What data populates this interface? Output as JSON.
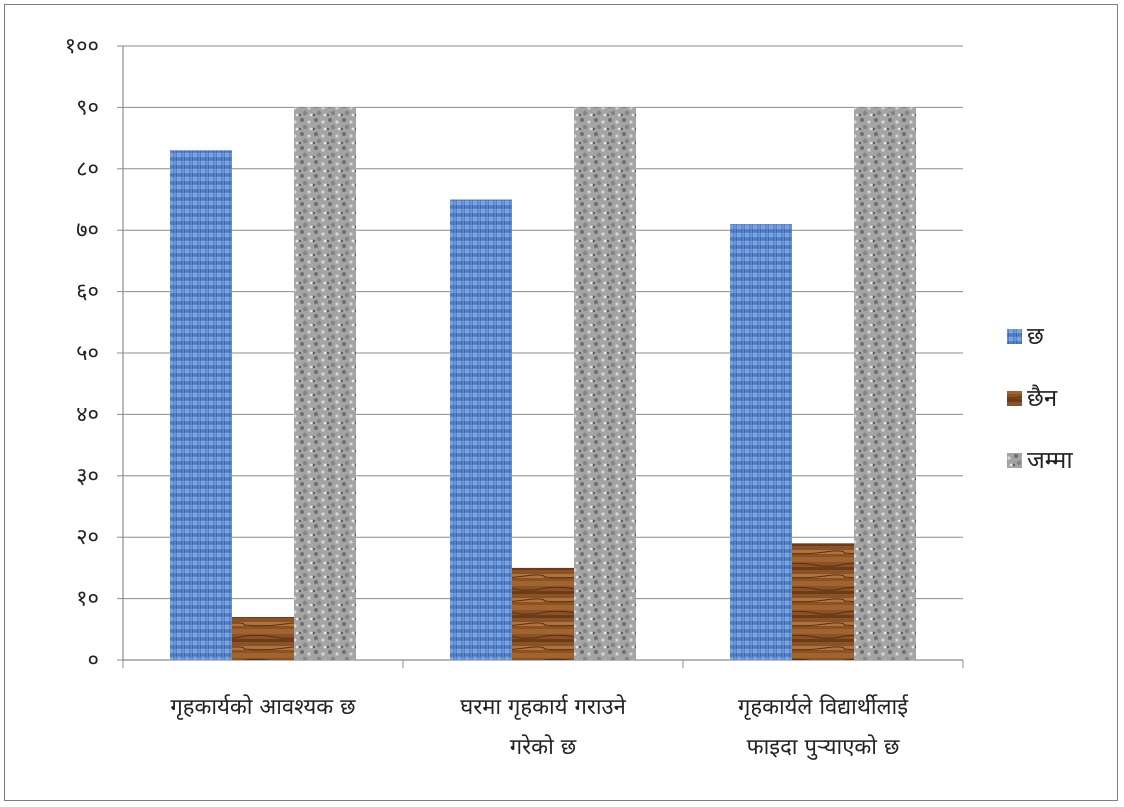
{
  "chart_data": {
    "type": "bar",
    "categories": [
      [
        "गृहकार्यको आवश्यक छ"
      ],
      [
        "घरमा गृहकार्य गराउने",
        "गरेको छ"
      ],
      [
        "गृहकार्यले विद्यार्थीलाई",
        "फाइदा पुऱ्याएको छ"
      ]
    ],
    "series": [
      {
        "name": "छ",
        "values": [
          83,
          75,
          71
        ],
        "color": "#4f7fc8",
        "pattern": "woven"
      },
      {
        "name": "छैन",
        "values": [
          7,
          15,
          19
        ],
        "color": "#8a5226",
        "pattern": "wood"
      },
      {
        "name": "जम्मा",
        "values": [
          90,
          90,
          90
        ],
        "color": "#9a9a9a",
        "pattern": "granite"
      }
    ],
    "ylim": [
      0,
      100
    ],
    "yticks": [
      0,
      10,
      20,
      30,
      40,
      50,
      60,
      70,
      80,
      90,
      100
    ],
    "ytick_labels": [
      "०",
      "१०",
      "२०",
      "३०",
      "४०",
      "५०",
      "६०",
      "७०",
      "८०",
      "९०",
      "१००"
    ],
    "grid": true,
    "legend_position": "right",
    "title": "",
    "xlabel": "",
    "ylabel": ""
  }
}
